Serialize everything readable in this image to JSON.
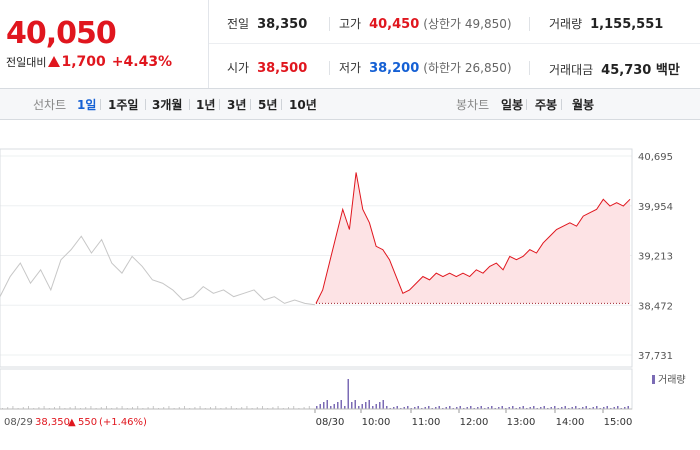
{
  "quote": {
    "price": "40,050",
    "change_label": "전일대비",
    "change_value": "1,700",
    "change_pct": "+4.43%"
  },
  "stats": {
    "prev_close": {
      "label": "전일",
      "value": "38,350"
    },
    "high": {
      "label": "고가",
      "value": "40,450",
      "sub": "(상한가 49,850)"
    },
    "volume": {
      "label": "거래량",
      "value": "1,155,551"
    },
    "open": {
      "label": "시가",
      "value": "38,500"
    },
    "low": {
      "label": "저가",
      "value": "38,200",
      "sub": "(하한가 26,850)"
    },
    "trade_amount": {
      "label": "거래대금",
      "value": "45,730 백만"
    }
  },
  "tabs": {
    "line_label": "선차트",
    "line": [
      "1일",
      "1주일",
      "3개월",
      "1년",
      "3년",
      "5년",
      "10년"
    ],
    "active": "1일",
    "candle_label": "봉차트",
    "candle": [
      "일봉",
      "주봉",
      "월봉"
    ]
  },
  "colors": {
    "up": "#e0161e",
    "down": "#1560d4",
    "fill": "#fde3e5",
    "prev_line": "#c7c7c7",
    "volume": "#7b6bb5"
  },
  "chart_data": {
    "type": "line",
    "y_ticks": [
      "40,695",
      "39,954",
      "39,213",
      "38,472",
      "37,731"
    ],
    "ylim": [
      37731,
      40695
    ],
    "x_labels": [
      "08/30",
      "10:00",
      "11:00",
      "12:00",
      "13:00",
      "14:00",
      "15:00"
    ],
    "prev_day": {
      "date": "08/29",
      "close": "38,350",
      "change": "550",
      "change_pct": "(+1.46%)"
    },
    "baseline": 38500,
    "volume_label": "거래량",
    "series_today": [
      38500,
      38700,
      39100,
      39500,
      39900,
      39600,
      40450,
      39900,
      39700,
      39350,
      39300,
      39150,
      38900,
      38650,
      38700,
      38800,
      38900,
      38850,
      38950,
      38900,
      38950,
      38900,
      38950,
      38900,
      39000,
      38950,
      39050,
      39100,
      39000,
      39200,
      39150,
      39200,
      39300,
      39250,
      39400,
      39500,
      39600,
      39650,
      39700,
      39650,
      39800,
      39850,
      39900,
      40050,
      39950,
      40000,
      39950,
      40050
    ],
    "series_prev": [
      38600,
      38900,
      39100,
      38800,
      39000,
      38700,
      39150,
      39300,
      39500,
      39250,
      39450,
      39100,
      38950,
      39200,
      39050,
      38850,
      38800,
      38700,
      38550,
      38600,
      38750,
      38650,
      38700,
      38600,
      38650,
      38700,
      38550,
      38600,
      38500,
      38550,
      38500,
      38480
    ]
  }
}
